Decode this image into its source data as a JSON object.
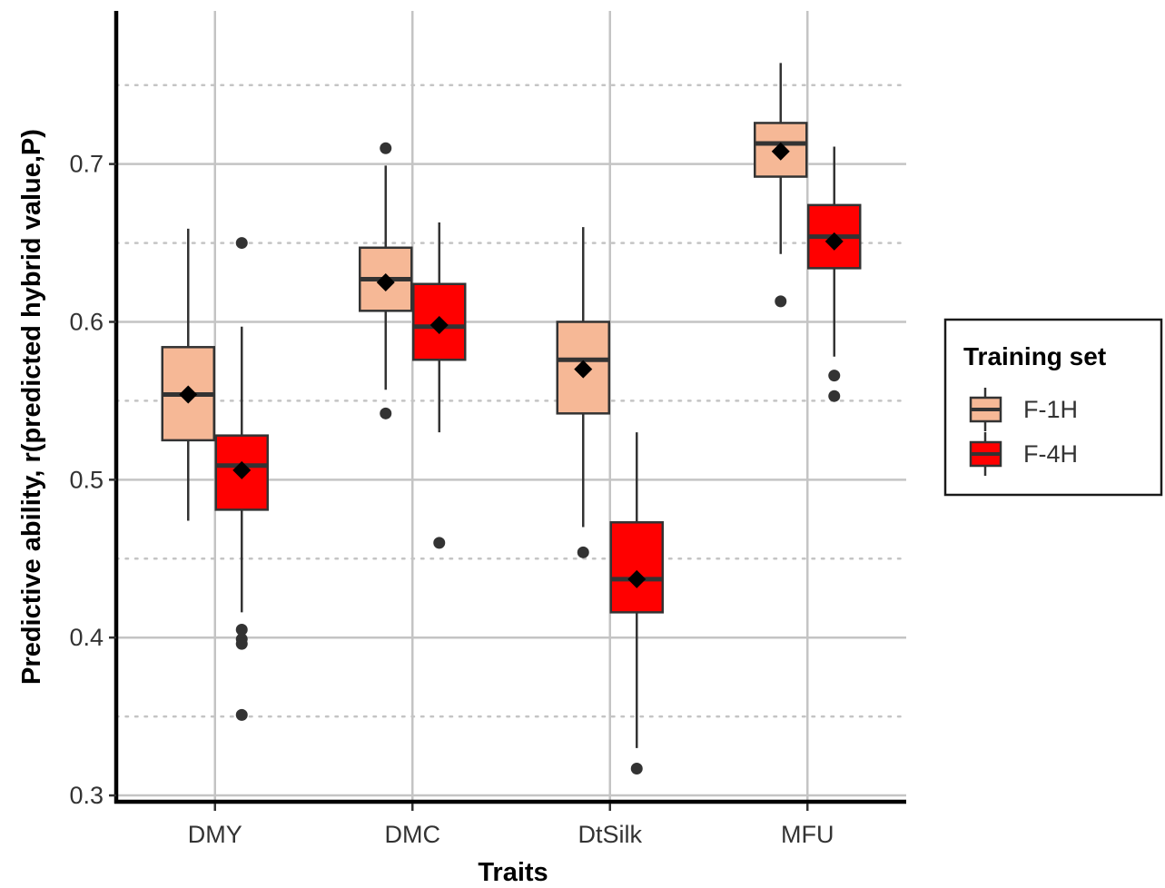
{
  "chart_data": {
    "type": "box",
    "xlabel": "Traits",
    "ylabel": "Predictive ability, r(predicted hybrid value,P)",
    "ylim": [
      0.296,
      0.797
    ],
    "y_major_ticks": [
      0.3,
      0.4,
      0.5,
      0.6,
      0.7
    ],
    "y_major_tick_labels": [
      "0.3",
      "0.4",
      "0.5",
      "0.6",
      "0.7"
    ],
    "y_minor_gridlines": [
      0.35,
      0.45,
      0.55,
      0.65,
      0.75
    ],
    "categories": [
      "DMY",
      "DMC",
      "DtSilk",
      "MFU"
    ],
    "grid": "major solid, minor dotted",
    "legend": {
      "title": "Training set",
      "placement": "right"
    },
    "series": [
      {
        "name": "F-1H",
        "color": "#F6B896",
        "boxes": [
          {
            "whisker_low": 0.474,
            "q1": 0.525,
            "median": 0.554,
            "q3": 0.584,
            "whisker_high": 0.659,
            "mean": 0.554,
            "outliers": []
          },
          {
            "whisker_low": 0.557,
            "q1": 0.607,
            "median": 0.627,
            "q3": 0.647,
            "whisker_high": 0.699,
            "mean": 0.625,
            "outliers": [
              0.71,
              0.542
            ]
          },
          {
            "whisker_low": 0.47,
            "q1": 0.542,
            "median": 0.576,
            "q3": 0.6,
            "whisker_high": 0.66,
            "mean": 0.57,
            "outliers": [
              0.454
            ]
          },
          {
            "whisker_low": 0.643,
            "q1": 0.692,
            "median": 0.713,
            "q3": 0.726,
            "whisker_high": 0.764,
            "mean": 0.708,
            "outliers": [
              0.613
            ]
          }
        ]
      },
      {
        "name": "F-4H",
        "color": "#FF0000",
        "boxes": [
          {
            "whisker_low": 0.416,
            "q1": 0.481,
            "median": 0.509,
            "q3": 0.528,
            "whisker_high": 0.597,
            "mean": 0.506,
            "outliers": [
              0.65,
              0.405,
              0.399,
              0.396,
              0.351
            ]
          },
          {
            "whisker_low": 0.53,
            "q1": 0.576,
            "median": 0.597,
            "q3": 0.624,
            "whisker_high": 0.663,
            "mean": 0.598,
            "outliers": [
              0.46
            ]
          },
          {
            "whisker_low": 0.33,
            "q1": 0.416,
            "median": 0.437,
            "q3": 0.473,
            "whisker_high": 0.53,
            "mean": 0.437,
            "outliers": [
              0.317
            ]
          },
          {
            "whisker_low": 0.578,
            "q1": 0.634,
            "median": 0.654,
            "q3": 0.674,
            "whisker_high": 0.711,
            "mean": 0.651,
            "outliers": [
              0.566,
              0.553
            ]
          }
        ]
      }
    ]
  }
}
